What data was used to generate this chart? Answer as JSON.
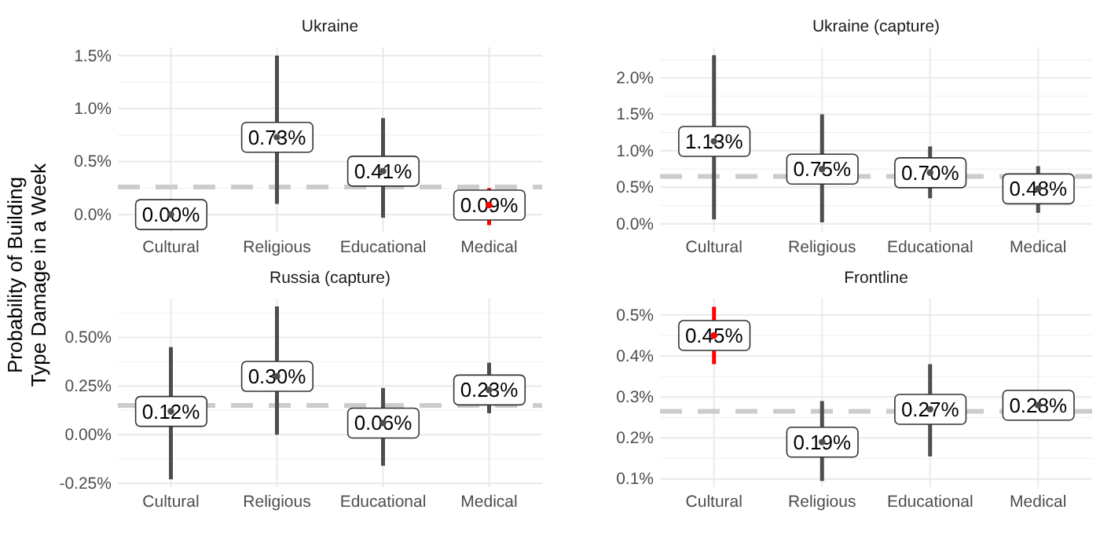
{
  "chart_data": [
    {
      "type": "scatter",
      "title": "Ukraine",
      "ylabel": "Probability of Building\nType Damage in a Week",
      "categories": [
        "Cultural",
        "Religious",
        "Educational",
        "Medical"
      ],
      "marker": "circle",
      "grid": true,
      "values": [
        0.0,
        0.73,
        0.41,
        0.09
      ],
      "value_labels": [
        "0.00%",
        "0.73%",
        "0.41%",
        "0.09%"
      ],
      "errors": [
        null,
        [
          0.1,
          1.5
        ],
        [
          -0.03,
          0.91
        ],
        [
          -0.1,
          0.25
        ]
      ],
      "colors": [
        "#4d4d4d",
        "#4d4d4d",
        "#4d4d4d",
        "#ff0000"
      ],
      "ylim": [
        -0.17,
        1.58
      ],
      "yticks": [
        {
          "value": 0,
          "label": "0.0%"
        },
        {
          "value": 0.5,
          "label": "0.5%"
        },
        {
          "value": 1,
          "label": "1.0%"
        },
        {
          "value": 1.5,
          "label": "1.5%"
        }
      ],
      "ref_lines": [
        {
          "axis": "y",
          "value": 0.26,
          "color": "#cccccc",
          "line_style": "dashed"
        }
      ]
    },
    {
      "type": "scatter",
      "title": "Ukraine (capture)",
      "categories": [
        "Cultural",
        "Religious",
        "Educational",
        "Medical"
      ],
      "marker": "circle",
      "grid": true,
      "values": [
        1.13,
        0.75,
        0.7,
        0.48
      ],
      "value_labels": [
        "1.13%",
        "0.75%",
        "0.70%",
        "0.48%"
      ],
      "errors": [
        [
          0.06,
          2.31
        ],
        [
          0.02,
          1.5
        ],
        [
          0.35,
          1.06
        ],
        [
          0.15,
          0.79
        ]
      ],
      "colors": [
        "#4d4d4d",
        "#4d4d4d",
        "#4d4d4d",
        "#4d4d4d"
      ],
      "ylim": [
        -0.12,
        2.42
      ],
      "yticks": [
        {
          "value": 0,
          "label": "0.0%"
        },
        {
          "value": 0.5,
          "label": "0.5%"
        },
        {
          "value": 1,
          "label": "1.0%"
        },
        {
          "value": 1.5,
          "label": "1.5%"
        },
        {
          "value": 2,
          "label": "2.0%"
        }
      ],
      "ref_lines": [
        {
          "axis": "y",
          "value": 0.65,
          "color": "#cccccc",
          "line_style": "dashed"
        }
      ]
    },
    {
      "type": "scatter",
      "title": "Russia (capture)",
      "categories": [
        "Cultural",
        "Religious",
        "Educational",
        "Medical"
      ],
      "marker": "circle",
      "grid": true,
      "values": [
        0.12,
        0.3,
        0.06,
        0.23
      ],
      "value_labels": [
        "0.12%",
        "0.30%",
        "0.06%",
        "0.23%"
      ],
      "errors": [
        [
          -0.23,
          0.45
        ],
        [
          0.0,
          0.66
        ],
        [
          -0.16,
          0.24
        ],
        [
          0.11,
          0.37
        ]
      ],
      "colors": [
        "#4d4d4d",
        "#4d4d4d",
        "#4d4d4d",
        "#4d4d4d"
      ],
      "ylim": [
        -0.27,
        0.7
      ],
      "yticks": [
        {
          "value": -0.25,
          "label": "-0.25%"
        },
        {
          "value": 0,
          "label": "0.00%"
        },
        {
          "value": 0.25,
          "label": "0.25%"
        },
        {
          "value": 0.5,
          "label": "0.50%"
        }
      ],
      "ref_lines": [
        {
          "axis": "y",
          "value": 0.15,
          "color": "#cccccc",
          "line_style": "dashed"
        }
      ]
    },
    {
      "type": "scatter",
      "title": "Frontline",
      "categories": [
        "Cultural",
        "Religious",
        "Educational",
        "Medical"
      ],
      "marker": "circle",
      "grid": true,
      "values": [
        0.45,
        0.19,
        0.27,
        0.28
      ],
      "value_labels": [
        "0.45%",
        "0.19%",
        "0.27%",
        "0.28%"
      ],
      "errors": [
        [
          0.38,
          0.52
        ],
        [
          0.095,
          0.29
        ],
        [
          0.155,
          0.38
        ],
        null
      ],
      "colors": [
        "#ff0000",
        "#4d4d4d",
        "#4d4d4d",
        "#4d4d4d"
      ],
      "ylim": [
        0.08,
        0.54
      ],
      "yticks": [
        {
          "value": 0.1,
          "label": "0.1%"
        },
        {
          "value": 0.2,
          "label": "0.2%"
        },
        {
          "value": 0.3,
          "label": "0.3%"
        },
        {
          "value": 0.4,
          "label": "0.4%"
        },
        {
          "value": 0.5,
          "label": "0.5%"
        }
      ],
      "ref_lines": [
        {
          "axis": "y",
          "value": 0.265,
          "color": "#cccccc",
          "line_style": "dashed"
        }
      ]
    }
  ]
}
